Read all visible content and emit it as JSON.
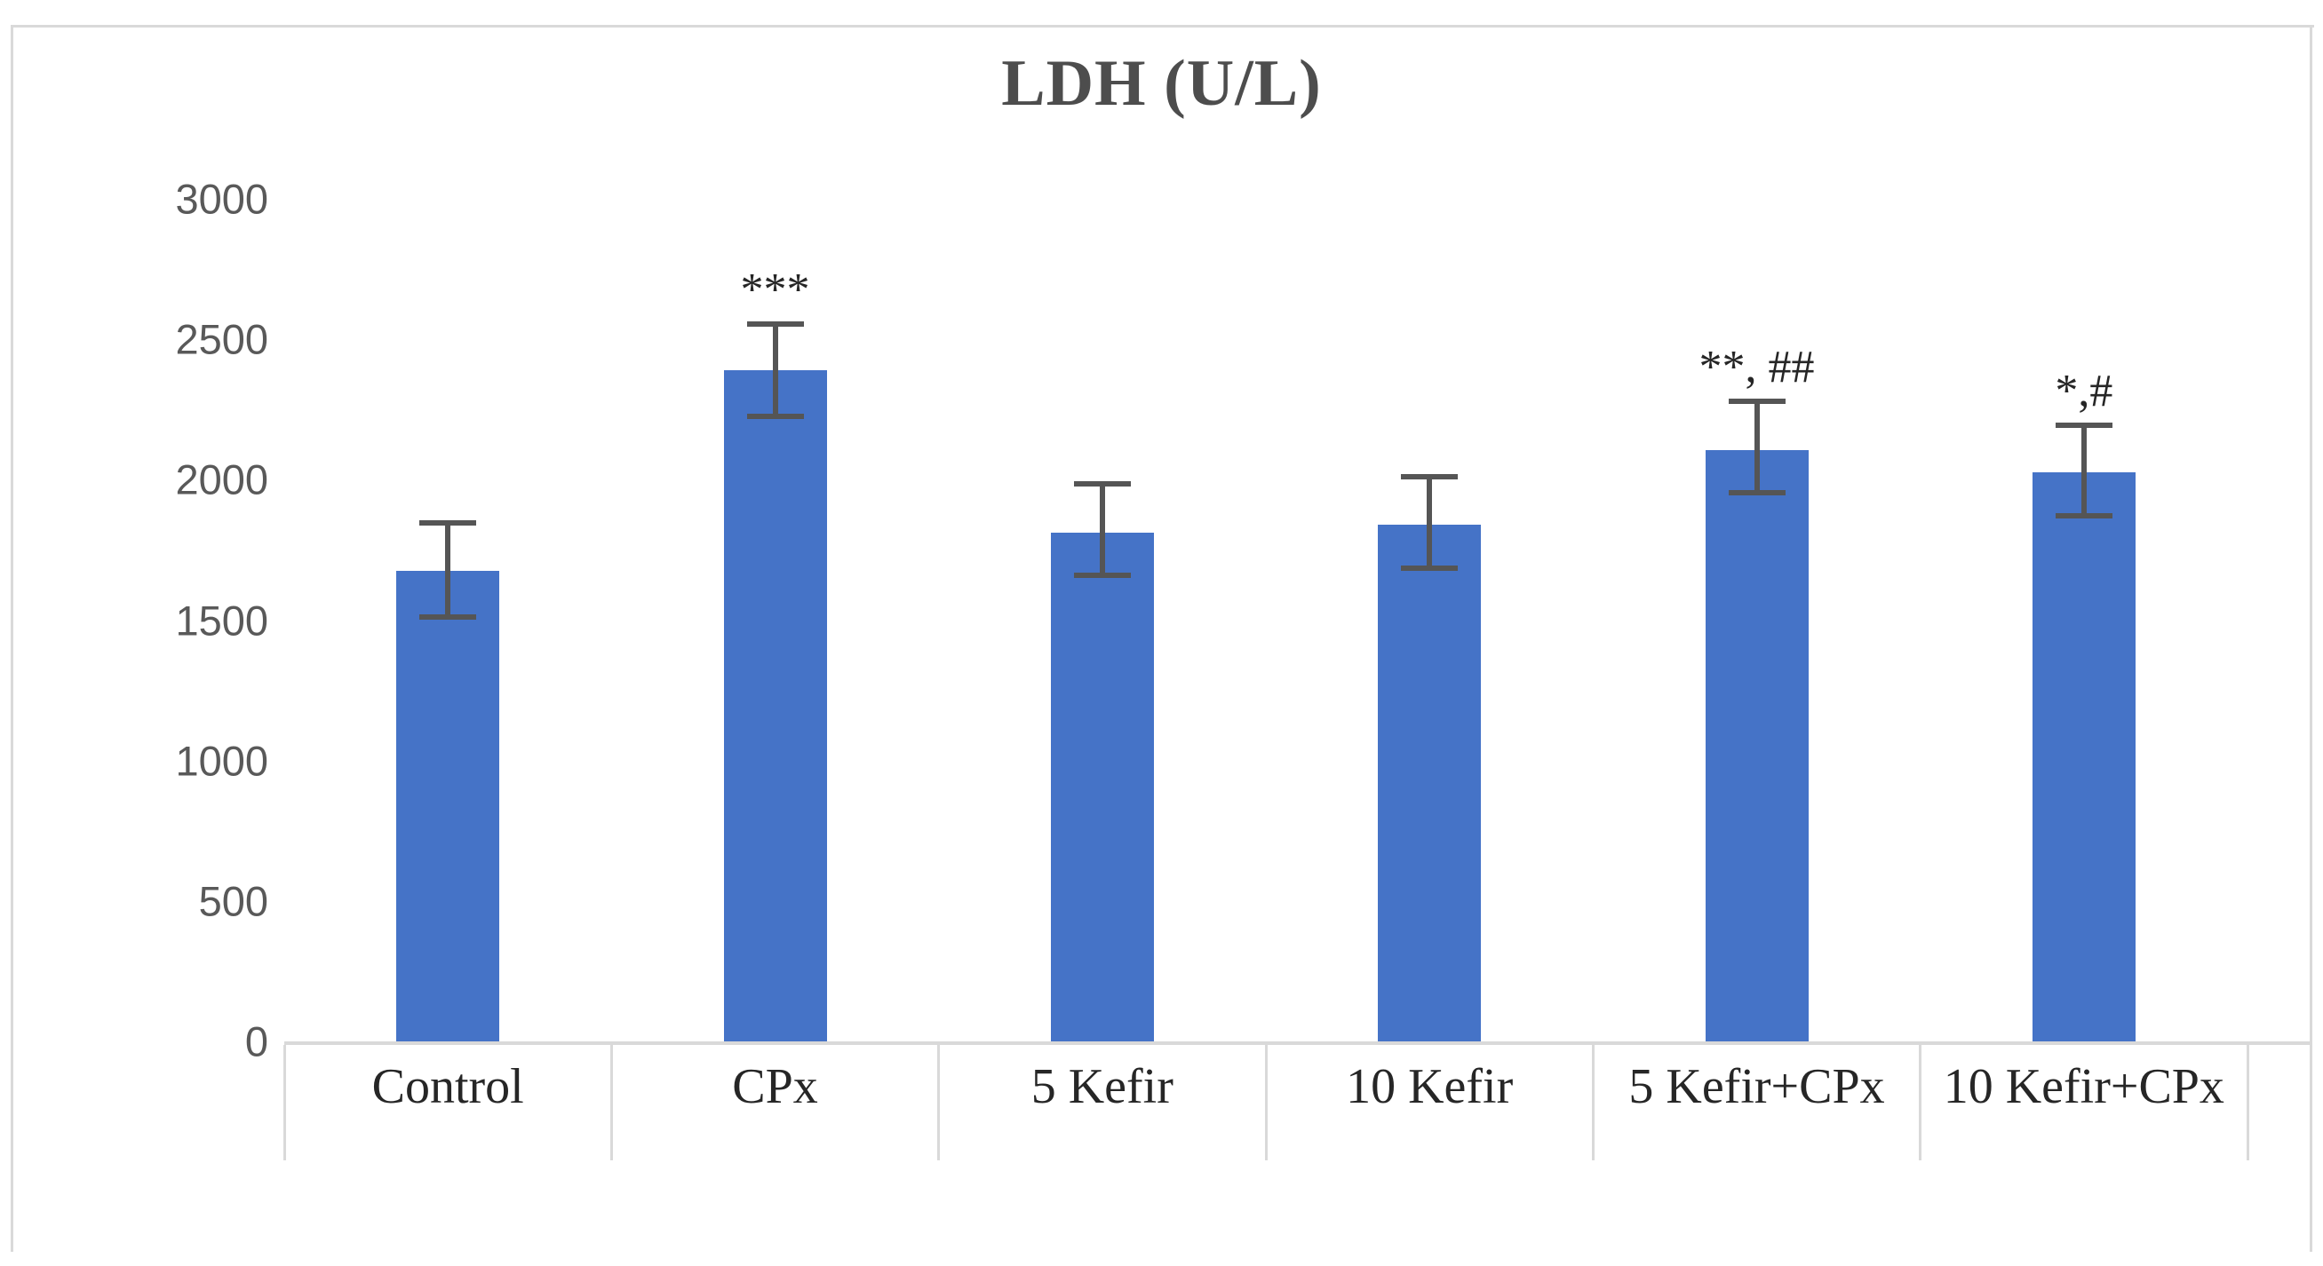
{
  "chart_data": {
    "type": "bar",
    "title": "LDH (U/L)",
    "categories": [
      "Control",
      "CPx",
      "5 Kefir",
      "10 Kefir",
      "5 Kefir+CPx",
      "10 Kefir+CPx"
    ],
    "values": [
      1675,
      2390,
      1810,
      1840,
      2105,
      2025
    ],
    "error_plus": [
      170,
      165,
      175,
      170,
      175,
      170
    ],
    "error_minus": [
      165,
      165,
      150,
      155,
      150,
      155
    ],
    "annotations": [
      "",
      "***",
      "",
      "",
      "**, ##",
      "*,#"
    ],
    "ylabel": "",
    "xlabel": "",
    "ylim": [
      0,
      3000
    ],
    "yticks": [
      0,
      500,
      1000,
      1500,
      2000,
      2500,
      3000
    ],
    "grid": false,
    "legend": "none",
    "colors": {
      "bar": "#4573c7",
      "error_bar": "#555555",
      "axis": "#d9d9d9",
      "frame": "#d9d9d9",
      "y_tick_text": "#595959",
      "x_tick_text": "#262626",
      "title_text": "#4d4d4d",
      "annotation_text": "#262626",
      "background": "#ffffff"
    }
  }
}
